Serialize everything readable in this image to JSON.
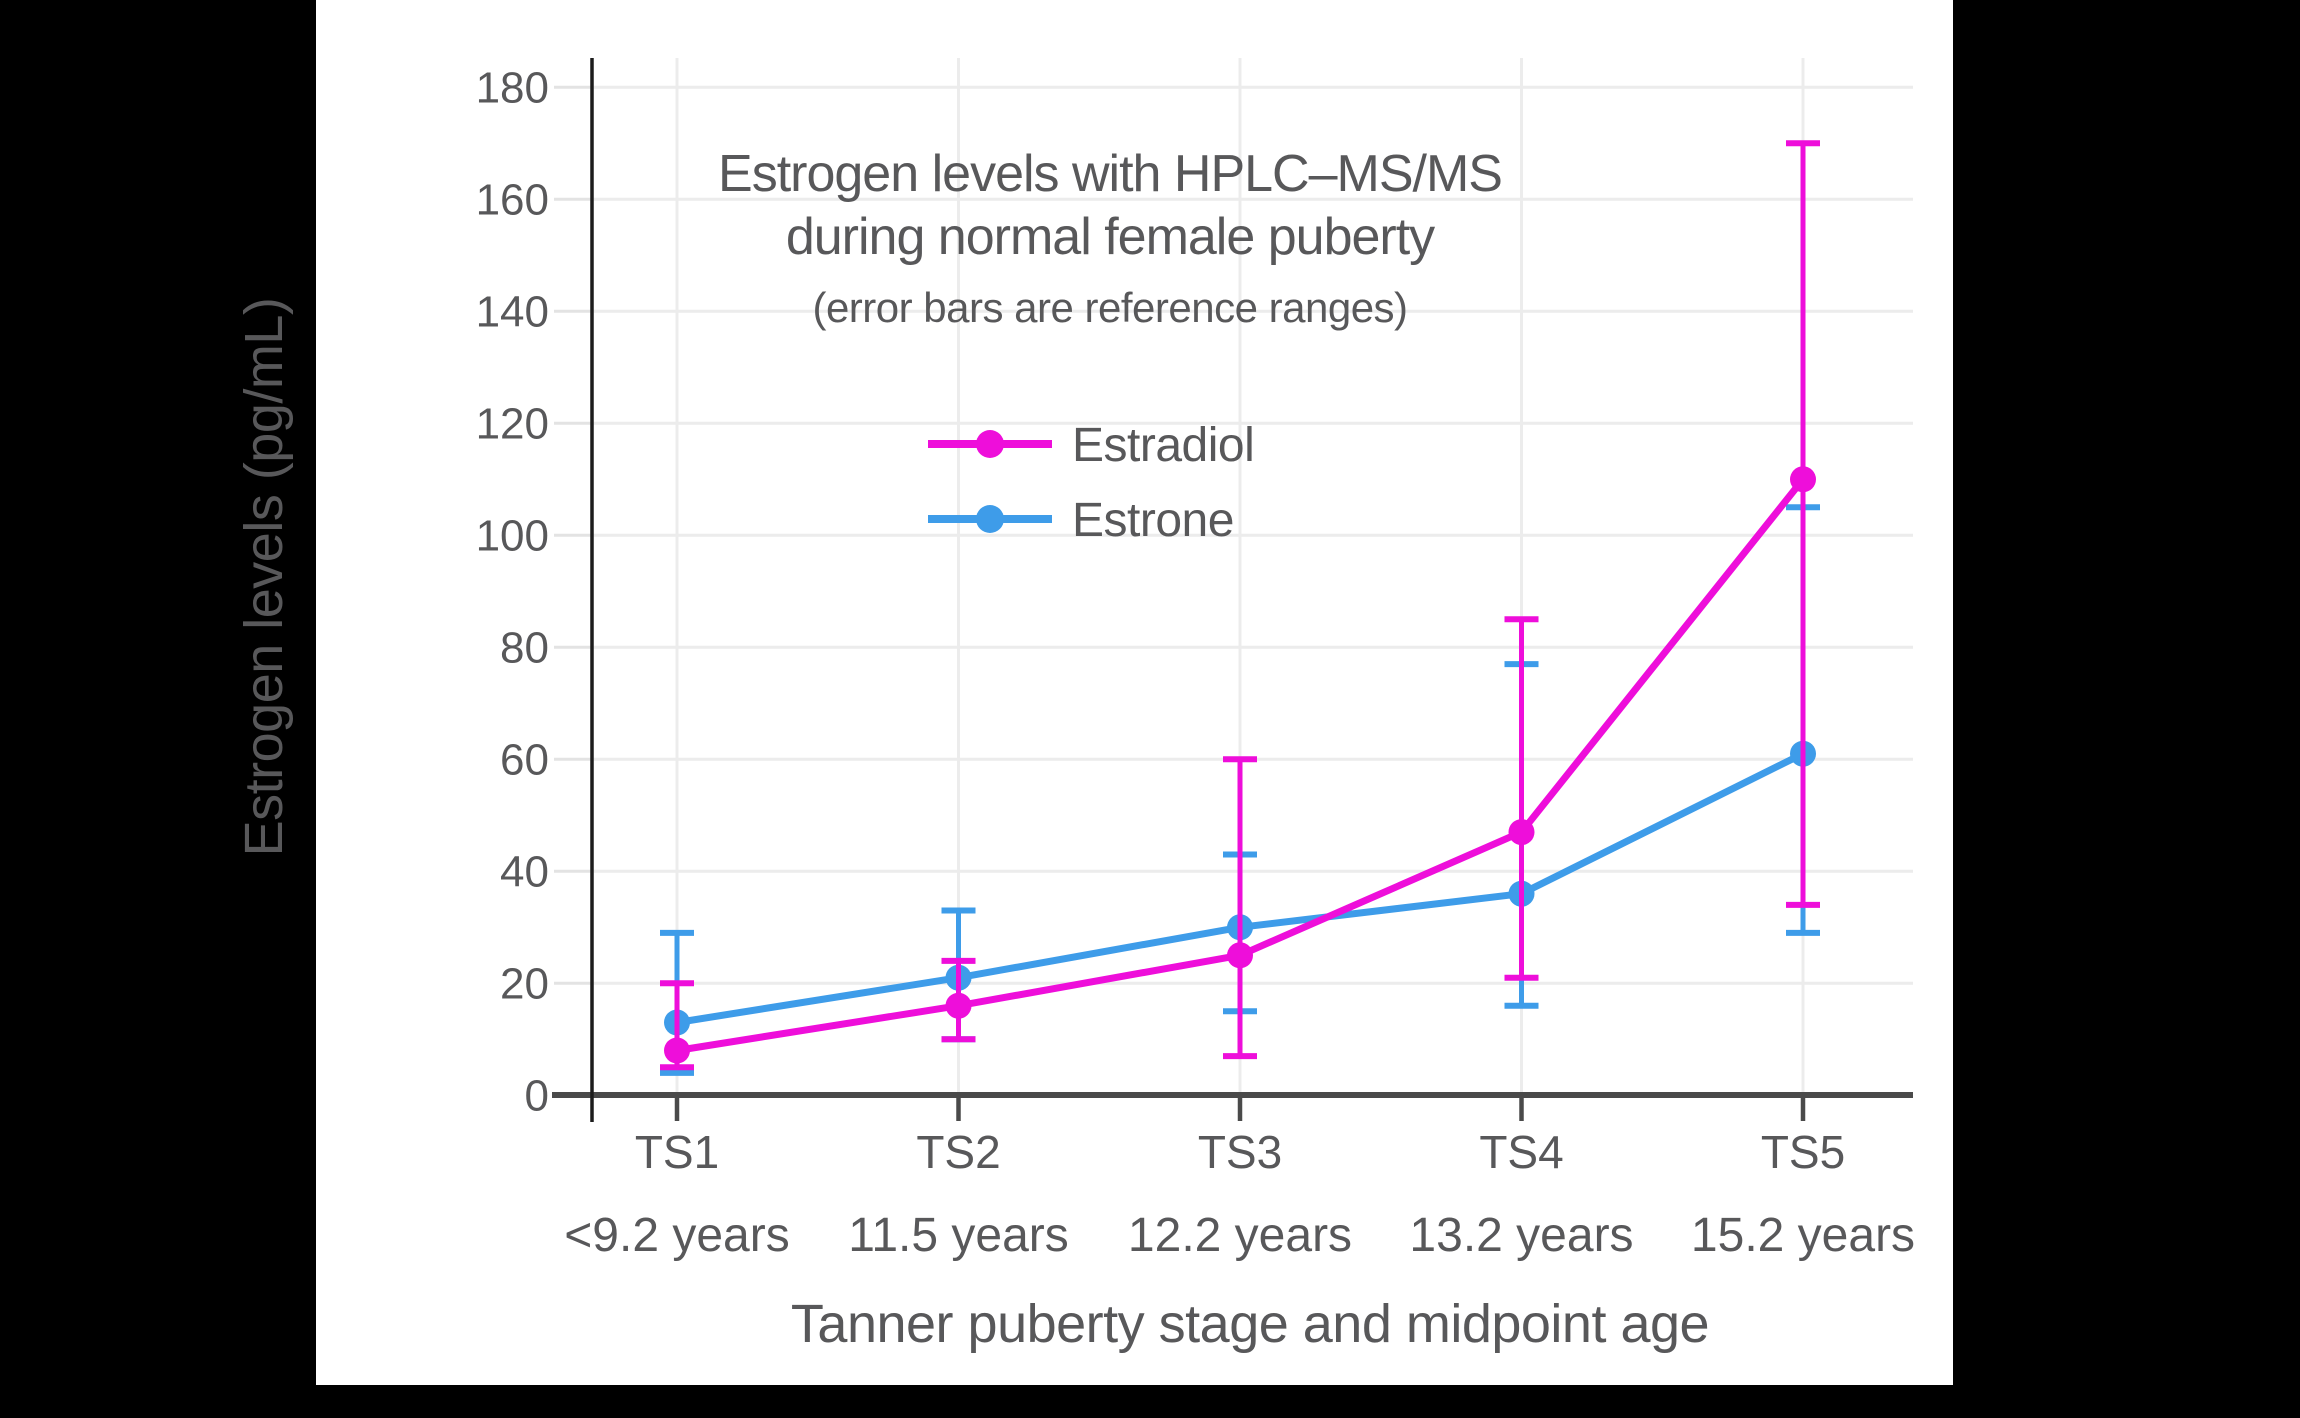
{
  "chart_data": {
    "type": "line",
    "title": "Estrogen levels with HPLC–MS/MS",
    "title_line2": "during normal female puberty",
    "subtitle": "(error bars are reference ranges)",
    "ylabel": "Estrogen levels (pg/mL)",
    "xlabel": "Tanner puberty stage and midpoint age",
    "units": "pg/mL",
    "categories": [
      "TS1",
      "TS2",
      "TS3",
      "TS4",
      "TS5"
    ],
    "category_ages": [
      "<9.2 years",
      "11.5 years",
      "12.2 years",
      "13.2 years",
      "15.2 years"
    ],
    "y_ticks": [
      0,
      20,
      40,
      60,
      80,
      100,
      120,
      140,
      160,
      180
    ],
    "ylim": [
      0,
      185
    ],
    "grid": true,
    "legend_position": "upper-center",
    "legend": [
      {
        "label": "Estradiol",
        "color": "#EE0EDA"
      },
      {
        "label": "Estrone",
        "color": "#3E9CE9"
      }
    ],
    "series": [
      {
        "name": "Estrone",
        "color": "#3E9CE9",
        "values": [
          13,
          21,
          30,
          36,
          61
        ],
        "range_low": [
          4,
          10,
          15,
          16,
          29
        ],
        "range_high": [
          29,
          33,
          43,
          77,
          105
        ]
      },
      {
        "name": "Estradiol",
        "color": "#EE0EDA",
        "values": [
          8,
          16,
          25,
          47,
          110
        ],
        "range_low": [
          5,
          10,
          7,
          21,
          34
        ],
        "range_high": [
          20,
          24,
          60,
          85,
          170
        ]
      }
    ]
  },
  "colors": {
    "background": "#000000",
    "canvas": "#FFFFFF",
    "text": "#58585A",
    "gridline": "#ECECEC",
    "tick_stub": "#E3E3E3",
    "axis_line": "#4A4A4A",
    "y_spine": "#1C1C1C"
  }
}
